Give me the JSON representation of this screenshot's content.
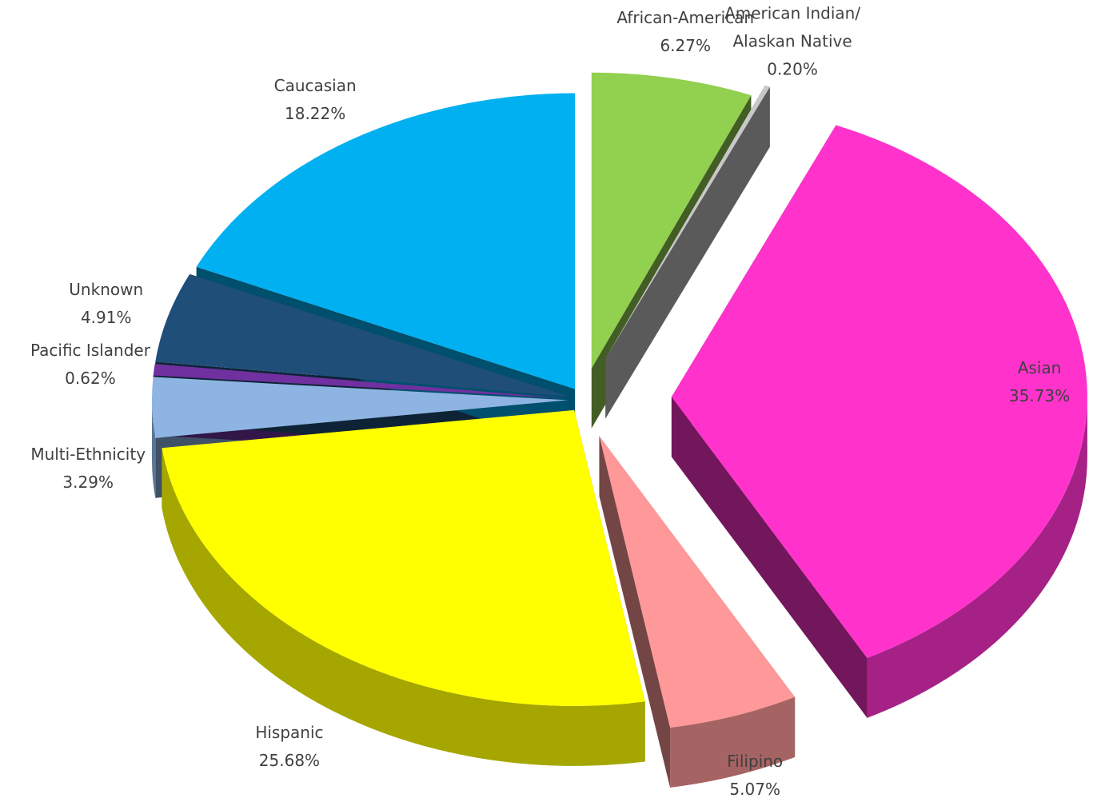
{
  "chart_data": {
    "type": "pie",
    "categories": [
      "African-American",
      "American Indian/\nAlaskan Native",
      "Asian",
      "Filipino",
      "Hispanic",
      "Multi-Ethnicity",
      "Pacific Islander",
      "Unknown",
      "Caucasian"
    ],
    "values": [
      6.27,
      0.2,
      35.73,
      5.07,
      25.68,
      3.29,
      0.62,
      4.91,
      18.22
    ],
    "value_labels": [
      "6.27%",
      "0.20%",
      "35.73%",
      "5.07%",
      "25.68%",
      "3.29%",
      "0.62%",
      "4.91%",
      "18.22%"
    ],
    "colors": [
      "#92d050",
      "#c8c8c8",
      "#ff33cc",
      "#ff9999",
      "#ffff00",
      "#8db4e2",
      "#7030a0",
      "#1f4e79",
      "#00b0f0"
    ]
  }
}
